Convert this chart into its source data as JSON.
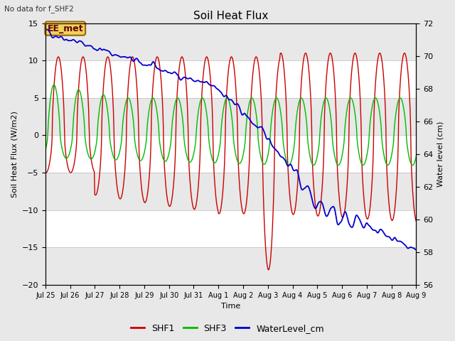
{
  "title": "Soil Heat Flux",
  "top_left_text": "No data for f_SHF2",
  "annotation_text": "EE_met",
  "xlabel": "Time",
  "ylabel_left": "Soil Heat Flux (W/m2)",
  "ylabel_right": "Water level (cm)",
  "ylim_left": [
    -20,
    15
  ],
  "ylim_right": [
    56,
    72
  ],
  "background_color": "#e8e8e8",
  "shf1_color": "#cc0000",
  "shf3_color": "#00bb00",
  "water_color": "#0000cc",
  "legend_labels": [
    "SHF1",
    "SHF3",
    "WaterLevel_cm"
  ],
  "tick_labels": [
    "Jul 25",
    "Jul 26",
    "Jul 27",
    "Jul 28",
    "Jul 29",
    "Jul 30",
    "Jul 31",
    "Aug 1",
    "Aug 2",
    "Aug 3",
    "Aug 4",
    "Aug 5",
    "Aug 6",
    "Aug 7",
    "Aug 8",
    "Aug 9"
  ],
  "band_colors": [
    "#e8e8e8",
    "#ffffff"
  ],
  "annotation_box_facecolor": "#f0d060",
  "annotation_box_edgecolor": "#996600"
}
